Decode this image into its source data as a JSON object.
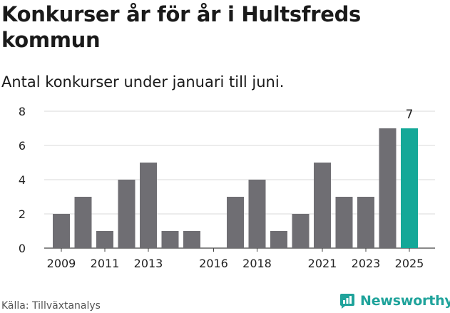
{
  "title": "Konkurser år för år i Hultsfreds kommun",
  "subtitle": "Antal konkurser under januari till juni.",
  "source": "Källa: Tillväxtanalys",
  "brand": "Newsworthy",
  "colors": {
    "bar": "#6f6e73",
    "highlight": "#14a898",
    "grid": "#d9d9d9",
    "brand": "#1fa39b"
  },
  "chart_data": {
    "type": "bar",
    "categories": [
      "2009",
      "2010",
      "2011",
      "2012",
      "2013",
      "2014",
      "2015",
      "2016",
      "2017",
      "2018",
      "2019",
      "2020",
      "2021",
      "2022",
      "2023",
      "2024",
      "2025"
    ],
    "values": [
      2,
      3,
      1,
      4,
      5,
      1,
      1,
      0,
      3,
      4,
      1,
      2,
      5,
      3,
      3,
      7,
      7
    ],
    "x_tick_labels": [
      "2009",
      "2011",
      "2013",
      "2016",
      "2018",
      "2021",
      "2023",
      "2025"
    ],
    "y_ticks": [
      0,
      2,
      4,
      6,
      8
    ],
    "ylim": [
      0,
      8
    ],
    "highlight_category": "2025",
    "highlight_label": "7",
    "grid": true
  }
}
